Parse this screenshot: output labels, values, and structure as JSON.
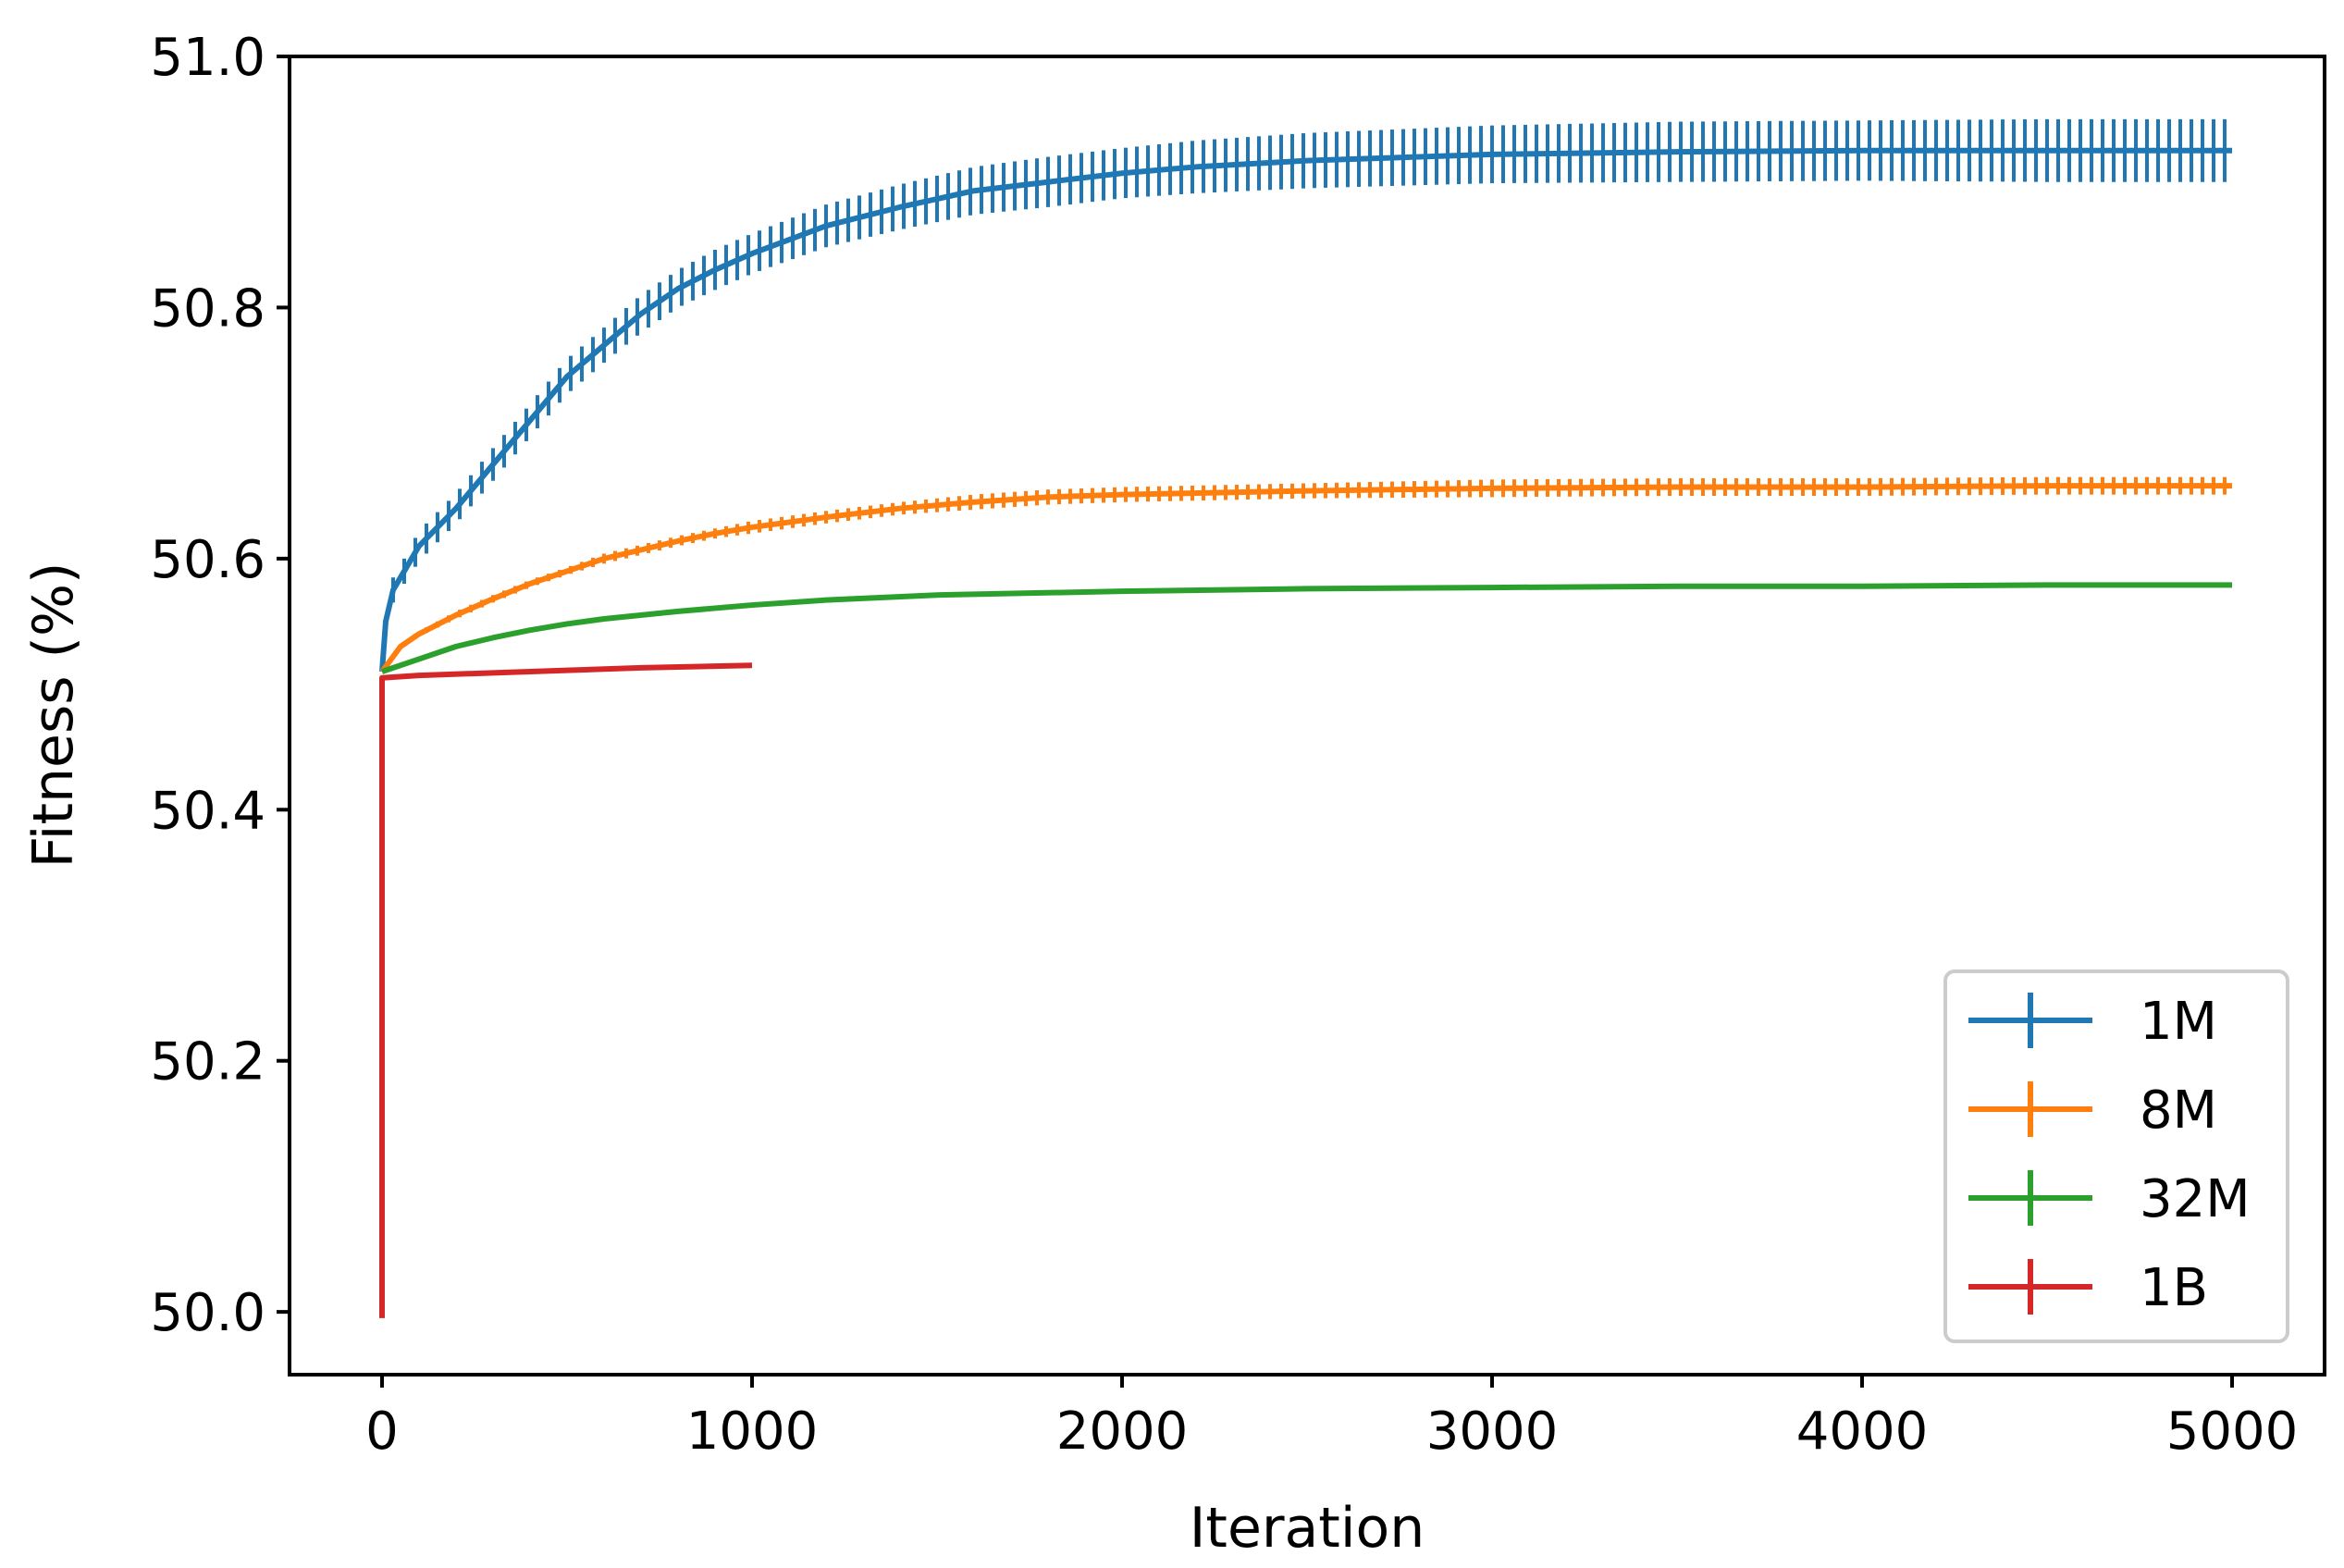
{
  "chart_data": {
    "type": "line",
    "title": "",
    "xlabel": "Iteration",
    "ylabel": "Fitness (%)",
    "xlim": [
      -250,
      5250
    ],
    "ylim": [
      49.95,
      51.0
    ],
    "xticks": [
      0,
      1000,
      2000,
      3000,
      4000,
      5000
    ],
    "xtick_labels": [
      "0",
      "1000",
      "2000",
      "3000",
      "4000",
      "5000"
    ],
    "yticks": [
      50.0,
      50.2,
      50.4,
      50.6,
      50.8,
      51.0
    ],
    "ytick_labels": [
      "50.0",
      "50.2",
      "50.4",
      "50.6",
      "50.8",
      "51.0"
    ],
    "grid": false,
    "legend_position": "lower-right",
    "series": [
      {
        "name": "1M",
        "color": "#1f77b4",
        "x": [
          0,
          10,
          30,
          60,
          100,
          150,
          200,
          300,
          400,
          500,
          600,
          700,
          800,
          900,
          1000,
          1200,
          1400,
          1600,
          1800,
          2000,
          2200,
          2500,
          3000,
          3500,
          4000,
          4500,
          5000
        ],
        "y": [
          50.51,
          50.55,
          50.575,
          50.59,
          50.61,
          50.625,
          50.64,
          50.675,
          50.71,
          50.745,
          50.77,
          50.795,
          50.815,
          50.83,
          50.843,
          50.865,
          50.88,
          50.893,
          50.9,
          50.907,
          50.912,
          50.917,
          50.922,
          50.924,
          50.925,
          50.925,
          50.925
        ],
        "error": [
          0,
          0.01,
          0.01,
          0.01,
          0.012,
          0.012,
          0.012,
          0.013,
          0.013,
          0.014,
          0.014,
          0.015,
          0.015,
          0.016,
          0.016,
          0.017,
          0.018,
          0.019,
          0.02,
          0.02,
          0.021,
          0.022,
          0.023,
          0.024,
          0.024,
          0.025,
          0.025
        ],
        "errorbar_step": 30
      },
      {
        "name": "8M",
        "color": "#ff7f0e",
        "x": [
          0,
          50,
          100,
          200,
          300,
          400,
          500,
          600,
          700,
          800,
          900,
          1000,
          1200,
          1400,
          1600,
          1800,
          2000,
          2500,
          3000,
          3500,
          4000,
          4500,
          5000
        ],
        "y": [
          50.51,
          50.53,
          50.54,
          50.555,
          50.568,
          50.58,
          50.59,
          50.6,
          50.607,
          50.614,
          50.62,
          50.625,
          50.633,
          50.64,
          50.645,
          50.649,
          50.651,
          50.654,
          50.656,
          50.657,
          50.657,
          50.658,
          50.658
        ],
        "error": [
          0,
          0.002,
          0.002,
          0.003,
          0.003,
          0.003,
          0.003,
          0.004,
          0.004,
          0.004,
          0.004,
          0.005,
          0.005,
          0.005,
          0.006,
          0.006,
          0.006,
          0.006,
          0.007,
          0.007,
          0.007,
          0.007,
          0.007
        ],
        "errorbar_step": 30
      },
      {
        "name": "32M",
        "color": "#2ca02c",
        "x": [
          0,
          100,
          200,
          300,
          400,
          500,
          600,
          800,
          1000,
          1200,
          1500,
          2000,
          2500,
          3000,
          3500,
          4000,
          4500,
          5000
        ],
        "y": [
          50.51,
          50.52,
          50.53,
          50.537,
          50.543,
          50.548,
          50.552,
          50.558,
          50.563,
          50.567,
          50.571,
          50.574,
          50.576,
          50.577,
          50.578,
          50.578,
          50.579,
          50.579
        ],
        "error": [
          0,
          0.001,
          0.001,
          0.001,
          0.001,
          0.001,
          0.001,
          0.001,
          0.001,
          0.001,
          0.001,
          0.001,
          0.001,
          0.001,
          0.001,
          0.001,
          0.001,
          0.001
        ],
        "errorbar_step": 30
      },
      {
        "name": "1B",
        "color": "#d62728",
        "x": [
          0,
          0,
          100,
          300,
          500,
          700,
          1000
        ],
        "y": [
          49.995,
          50.505,
          50.507,
          50.509,
          50.511,
          50.513,
          50.515
        ],
        "error": [
          0,
          0,
          0,
          0,
          0,
          0,
          0
        ],
        "errorbar_step": 0
      }
    ]
  }
}
